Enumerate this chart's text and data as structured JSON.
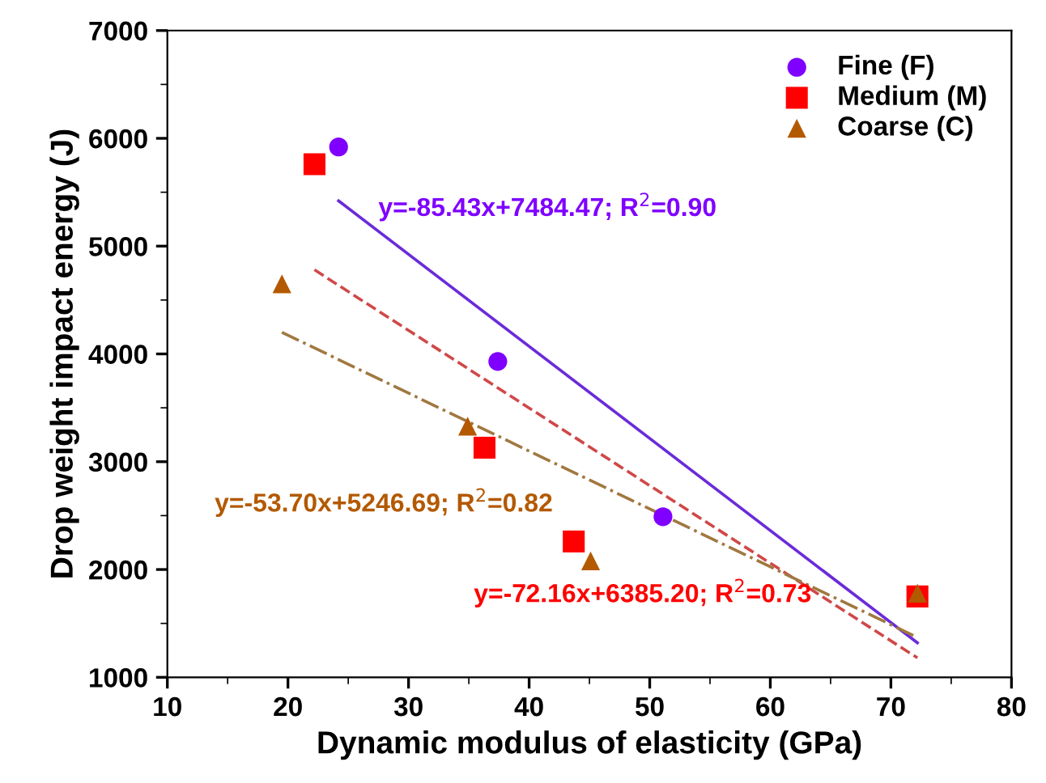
{
  "chart_data": {
    "type": "scatter",
    "xlabel": "Dynamic modulus of elasticity (GPa)",
    "ylabel": "Drop weight impact energy (J)",
    "xlim": [
      10,
      80
    ],
    "xticks": [
      10,
      20,
      30,
      40,
      50,
      60,
      70,
      80
    ],
    "ylim": [
      1000,
      7000
    ],
    "yticks": [
      1000,
      2000,
      3000,
      4000,
      5000,
      6000,
      7000
    ],
    "grid": false,
    "legend": "top right",
    "series": [
      {
        "name": "Fine (F)",
        "color": "#7f00ff",
        "marker": "circle",
        "x": [
          24.2,
          37.4,
          51.1
        ],
        "values": [
          5920,
          3930,
          2490
        ]
      },
      {
        "name": "Medium (M)",
        "color": "#ff0000",
        "marker": "square",
        "x": [
          22.2,
          36.3,
          43.7,
          72.2
        ],
        "values": [
          5760,
          3130,
          2260,
          1750
        ]
      },
      {
        "name": "Coarse (C)",
        "color": "#b35900",
        "marker": "triangle",
        "x": [
          19.5,
          34.9,
          45.1,
          72.2
        ],
        "values": [
          4650,
          3330,
          2080,
          1780
        ]
      },
      {
        "type": "line",
        "color": "#6a2bd9",
        "line_style": "solid",
        "x": [
          24.2,
          72.2
        ],
        "values": [
          5420,
          1320
        ]
      },
      {
        "type": "line",
        "color": "#d04848",
        "line_style": "dashed",
        "x": [
          22.2,
          72.2
        ],
        "values": [
          4780,
          1180
        ]
      },
      {
        "type": "line",
        "color": "#a07840",
        "line_style": "dashdot",
        "x": [
          19.5,
          72.2
        ],
        "values": [
          4200,
          1370
        ]
      }
    ],
    "annotations": [
      "y=-85.43x+7484.47; R$^{2}$=0.90",
      "y=-72.16x+6385.20; R$^{2}$=0.73",
      "y=-53.70x+5246.69; R$^{2}$=0.82"
    ]
  }
}
